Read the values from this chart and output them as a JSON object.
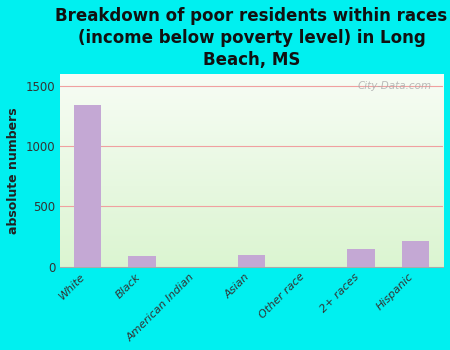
{
  "categories": [
    "White",
    "Black",
    "American Indian",
    "Asian",
    "Other race",
    "2+ races",
    "Hispanic"
  ],
  "values": [
    1340,
    90,
    0,
    100,
    0,
    150,
    210
  ],
  "bar_color": "#c4a8d4",
  "title": "Breakdown of poor residents within races\n(income below poverty level) in Long\nBeach, MS",
  "ylabel": "absolute numbers",
  "ylim": [
    0,
    1600
  ],
  "yticks": [
    0,
    500,
    1000,
    1500
  ],
  "background_color": "#00f0f0",
  "grid_color": "#f0a0a0",
  "watermark": "City-Data.com",
  "title_fontsize": 12,
  "ylabel_fontsize": 9
}
